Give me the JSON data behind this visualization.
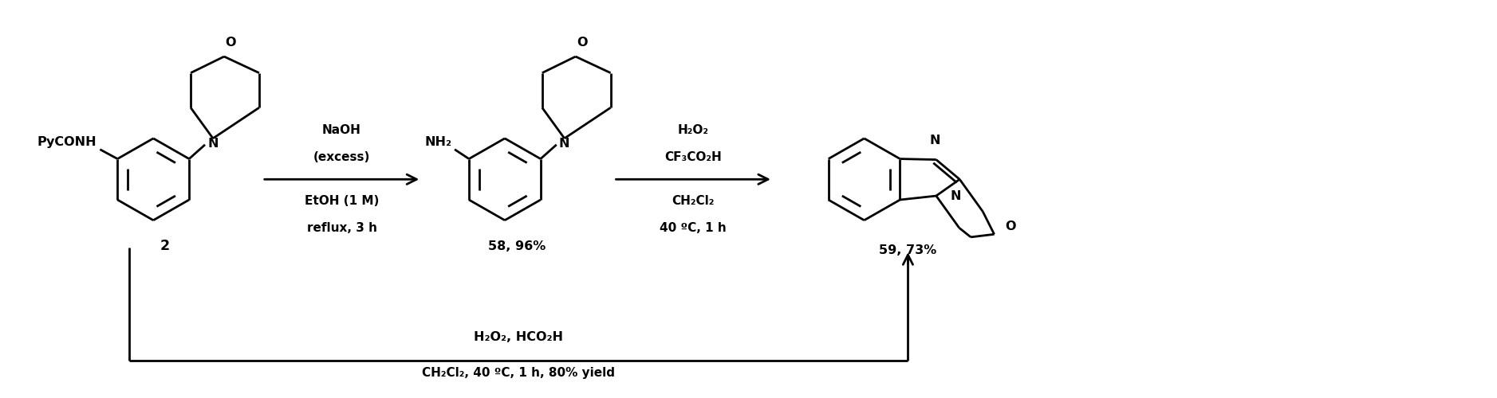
{
  "bg_color": "#ffffff",
  "line_color": "#000000",
  "lw": 2.0,
  "fig_width": 18.77,
  "fig_height": 5.0,
  "arrow1_label_line1": "NaOH",
  "arrow1_label_line2": "(excess)",
  "arrow1_label_line3": "EtOH (1 M)",
  "arrow1_label_line4": "reflux, 3 h",
  "arrow2_label_line1": "H₂O₂",
  "arrow2_label_line2": "CF₃CO₂H",
  "arrow2_label_line3": "CH₂Cl₂",
  "arrow2_label_line4": "40 ºC, 1 h",
  "compound2_label": "2",
  "compound58_label": "58, 96%",
  "compound59_label": "59, 73%",
  "bottom_arrow_line1": "H₂O₂, HCO₂H",
  "bottom_arrow_line2": "CH₂Cl₂, 40 ºC, 1 h, 80% yield",
  "pycone_label": "PyCONH",
  "nh2_label": "NH₂",
  "N_label": "N",
  "O_label": "O"
}
